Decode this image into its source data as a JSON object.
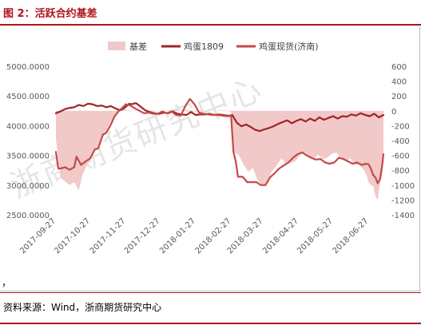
{
  "figure": {
    "title": "图 2：活跃合约基差",
    "comma": "，",
    "source": "资料来源：Wind，浙商期货研究中心",
    "watermark": "浙商期货研究中心"
  },
  "colors": {
    "basis_fill": "#f2c9c9",
    "futures_line": "#a02525",
    "spot_line": "#c44a4a",
    "accent": "#b0131a"
  },
  "chart_data": {
    "type": "line",
    "legend_position": "top",
    "grid": false,
    "y_left": {
      "ylim": [
        2500,
        5000
      ],
      "ticks": [
        "5000.0000",
        "4500.0000",
        "4000.0000",
        "3500.0000",
        "3000.0000",
        "2500.0000"
      ]
    },
    "y_right": {
      "ylim": [
        -1400,
        600
      ],
      "ticks": [
        "600",
        "400",
        "200",
        "0",
        "-200",
        "-400",
        "-600",
        "-800",
        "-1000",
        "-1200",
        "-1400"
      ]
    },
    "x_ticks": [
      "2017-09-27",
      "2017-10-27",
      "2017-11-27",
      "2017-12-27",
      "2018-01-27",
      "2018-02-27",
      "2018-03-27",
      "2018-04-27",
      "2018-05-27",
      "2018-06-27"
    ],
    "x_range": [
      "2017-09-27",
      "2018-07-10"
    ],
    "series": [
      {
        "name": "基差",
        "kind": "area",
        "axis": "right",
        "x": [
          "2017-09-27",
          "2017-10-01",
          "2017-10-09",
          "2017-10-13",
          "2017-10-17",
          "2017-10-20",
          "2017-10-23",
          "2017-10-27",
          "2017-10-31",
          "2017-11-03",
          "2017-11-08",
          "2017-11-12",
          "2017-11-16",
          "2017-11-20",
          "2017-11-24",
          "2017-12-01",
          "2017-12-10",
          "2017-12-20",
          "2017-12-30",
          "2018-01-10",
          "2018-01-20",
          "2018-02-01",
          "2018-02-12",
          "2018-02-22",
          "2018-02-27",
          "2018-03-02",
          "2018-03-06",
          "2018-03-10",
          "2018-03-14",
          "2018-03-18",
          "2018-03-22",
          "2018-03-26",
          "2018-03-30",
          "2018-04-03",
          "2018-04-08",
          "2018-04-12",
          "2018-04-16",
          "2018-04-20",
          "2018-04-24",
          "2018-04-28",
          "2018-05-02",
          "2018-05-06",
          "2018-05-10",
          "2018-05-14",
          "2018-05-18",
          "2018-05-22",
          "2018-05-26",
          "2018-05-30",
          "2018-06-03",
          "2018-06-07",
          "2018-06-11",
          "2018-06-15",
          "2018-06-19",
          "2018-06-23",
          "2018-06-25",
          "2018-06-27",
          "2018-06-29",
          "2018-07-01",
          "2018-07-03",
          "2018-07-05",
          "2018-07-07",
          "2018-07-09",
          "2018-07-10"
        ],
        "values": [
          -380,
          -900,
          -1000,
          -960,
          -1070,
          -870,
          -760,
          -660,
          -520,
          -470,
          -330,
          -200,
          -90,
          -30,
          20,
          10,
          0,
          -10,
          0,
          20,
          -10,
          -10,
          0,
          10,
          -20,
          -560,
          -600,
          -730,
          -820,
          -770,
          -930,
          -1000,
          -990,
          -830,
          -730,
          -640,
          -720,
          -700,
          -680,
          -600,
          -560,
          -600,
          -640,
          -590,
          -650,
          -630,
          -580,
          -560,
          -650,
          -680,
          -640,
          -720,
          -730,
          -800,
          -860,
          -960,
          -1000,
          -1010,
          -1150,
          -1200,
          -980,
          -850,
          -620
        ]
      },
      {
        "name": "鸡蛋1809",
        "kind": "line",
        "axis": "left",
        "x": [
          "2017-09-27",
          "2017-10-01",
          "2017-10-05",
          "2017-10-09",
          "2017-10-13",
          "2017-10-17",
          "2017-10-21",
          "2017-10-25",
          "2017-10-29",
          "2017-11-02",
          "2017-11-06",
          "2017-11-10",
          "2017-11-14",
          "2017-11-18",
          "2017-11-22",
          "2017-11-26",
          "2017-11-30",
          "2017-12-02",
          "2017-12-06",
          "2017-12-10",
          "2017-12-14",
          "2017-12-18",
          "2017-12-22",
          "2017-12-26",
          "2017-12-30",
          "2018-01-03",
          "2018-01-07",
          "2018-01-11",
          "2018-01-15",
          "2018-01-19",
          "2018-01-23",
          "2018-01-27",
          "2018-01-31",
          "2018-02-04",
          "2018-02-08",
          "2018-02-12",
          "2018-02-16",
          "2018-02-20",
          "2018-02-24",
          "2018-02-26",
          "2018-02-28",
          "2018-03-04",
          "2018-03-08",
          "2018-03-12",
          "2018-03-16",
          "2018-03-20",
          "2018-03-24",
          "2018-03-28",
          "2018-04-01",
          "2018-04-05",
          "2018-04-09",
          "2018-04-13",
          "2018-04-17",
          "2018-04-21",
          "2018-04-25",
          "2018-04-29",
          "2018-05-03",
          "2018-05-07",
          "2018-05-11",
          "2018-05-15",
          "2018-05-19",
          "2018-05-23",
          "2018-05-27",
          "2018-05-31",
          "2018-06-04",
          "2018-06-08",
          "2018-06-12",
          "2018-06-16",
          "2018-06-20",
          "2018-06-24",
          "2018-06-28",
          "2018-07-02",
          "2018-07-06",
          "2018-07-10"
        ],
        "values": [
          4210,
          4240,
          4280,
          4300,
          4310,
          4350,
          4330,
          4370,
          4360,
          4330,
          4340,
          4310,
          4330,
          4290,
          4260,
          4300,
          4370,
          4360,
          4380,
          4320,
          4260,
          4230,
          4210,
          4200,
          4220,
          4210,
          4240,
          4200,
          4190,
          4180,
          4230,
          4180,
          4190,
          4190,
          4200,
          4180,
          4190,
          4180,
          4170,
          4170,
          4180,
          4050,
          3990,
          4020,
          3980,
          3930,
          3910,
          3940,
          3960,
          3990,
          4030,
          4060,
          4090,
          4040,
          4080,
          4110,
          4070,
          4120,
          4080,
          4140,
          4100,
          4130,
          4160,
          4120,
          4160,
          4150,
          4190,
          4170,
          4210,
          4180,
          4160,
          4200,
          4140,
          4180
        ]
      },
      {
        "name": "鸡蛋现货(济南)",
        "kind": "line",
        "axis": "left",
        "x": [
          "2017-09-27",
          "2017-09-29",
          "2017-10-01",
          "2017-10-05",
          "2017-10-09",
          "2017-10-13",
          "2017-10-15",
          "2017-10-19",
          "2017-10-23",
          "2017-10-27",
          "2017-10-31",
          "2017-11-03",
          "2017-11-07",
          "2017-11-10",
          "2017-11-14",
          "2017-11-17",
          "2017-11-21",
          "2017-11-24",
          "2017-11-27",
          "2017-12-01",
          "2017-12-05",
          "2017-12-09",
          "2017-12-13",
          "2017-12-17",
          "2017-12-21",
          "2017-12-25",
          "2017-12-29",
          "2018-01-02",
          "2018-01-06",
          "2018-01-10",
          "2018-01-14",
          "2018-01-18",
          "2018-01-22",
          "2018-01-26",
          "2018-01-30",
          "2018-02-03",
          "2018-02-07",
          "2018-02-11",
          "2018-02-15",
          "2018-02-19",
          "2018-02-23",
          "2018-02-27",
          "2018-03-01",
          "2018-03-03",
          "2018-03-05",
          "2018-03-09",
          "2018-03-13",
          "2018-03-17",
          "2018-03-21",
          "2018-03-25",
          "2018-03-29",
          "2018-04-02",
          "2018-04-06",
          "2018-04-10",
          "2018-04-14",
          "2018-04-18",
          "2018-04-22",
          "2018-04-26",
          "2018-04-30",
          "2018-05-04",
          "2018-05-08",
          "2018-05-12",
          "2018-05-16",
          "2018-05-20",
          "2018-05-24",
          "2018-05-28",
          "2018-06-01",
          "2018-06-05",
          "2018-06-09",
          "2018-06-13",
          "2018-06-17",
          "2018-06-21",
          "2018-06-25",
          "2018-06-27",
          "2018-06-29",
          "2018-07-01",
          "2018-07-03",
          "2018-07-05",
          "2018-07-07",
          "2018-07-09",
          "2018-07-10"
        ],
        "values": [
          3560,
          3280,
          3280,
          3300,
          3260,
          3300,
          3480,
          3340,
          3400,
          3450,
          3600,
          3620,
          3850,
          3880,
          4020,
          4150,
          4250,
          4300,
          4360,
          4340,
          4290,
          4250,
          4210,
          4220,
          4200,
          4200,
          4240,
          4210,
          4240,
          4180,
          4170,
          4330,
          4450,
          4360,
          4220,
          4200,
          4190,
          4180,
          4180,
          4170,
          4160,
          4160,
          3560,
          3400,
          3140,
          3140,
          3050,
          3050,
          3050,
          3000,
          3000,
          3130,
          3200,
          3280,
          3330,
          3380,
          3460,
          3520,
          3550,
          3500,
          3460,
          3430,
          3440,
          3380,
          3360,
          3380,
          3460,
          3440,
          3400,
          3360,
          3380,
          3340,
          3360,
          3350,
          3280,
          3170,
          3130,
          3030,
          3100,
          3350,
          3520
        ]
      }
    ]
  }
}
